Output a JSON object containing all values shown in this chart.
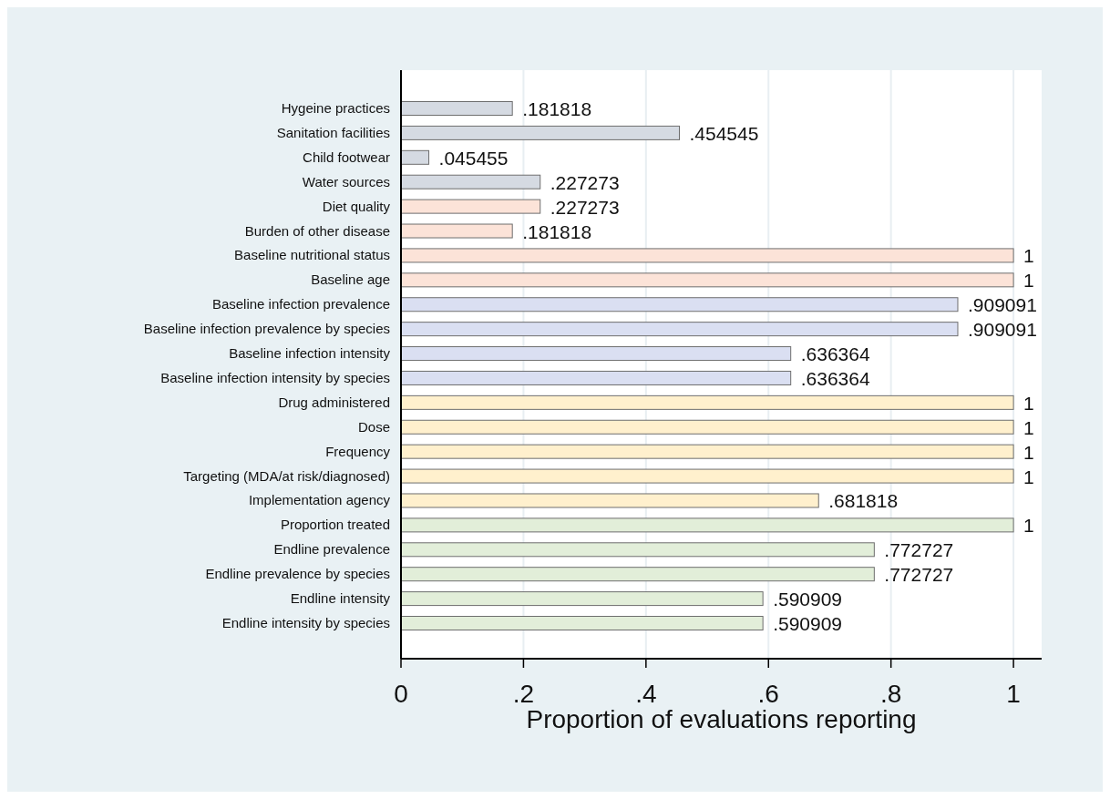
{
  "chart_data": {
    "type": "bar",
    "orientation": "horizontal",
    "xlabel": "Proportion of evaluations reporting",
    "categories": [
      "Hygeine practices",
      "Sanitation facilities",
      "Child footwear",
      "Water sources",
      "Diet quality",
      "Burden of other disease",
      "Baseline nutritional status",
      "Baseline age",
      "Baseline infection prevalence",
      "Baseline infection prevalence by species",
      "Baseline infection intensity",
      "Baseline infection intensity by species",
      "Drug administered",
      "Dose",
      "Frequency",
      "Targeting (MDA/at risk/diagnosed)",
      "Implementation agency",
      "Proportion treated",
      "Endline prevalence",
      "Endline prevalence by species",
      "Endline intensity",
      "Endline intensity by species"
    ],
    "values": [
      0.181818,
      0.454545,
      0.045455,
      0.227273,
      0.227273,
      0.181818,
      1,
      1,
      0.909091,
      0.909091,
      0.636364,
      0.636364,
      1,
      1,
      1,
      1,
      0.681818,
      1,
      0.772727,
      0.772727,
      0.590909,
      0.590909
    ],
    "value_labels": [
      ".181818",
      ".454545",
      ".045455",
      ".227273",
      ".227273",
      ".181818",
      "1",
      "1",
      ".909091",
      ".909091",
      ".636364",
      ".636364",
      "1",
      "1",
      "1",
      "1",
      ".681818",
      "1",
      ".772727",
      ".772727",
      ".590909",
      ".590909"
    ],
    "colors": [
      "#d5dae2",
      "#d5dae2",
      "#d5dae2",
      "#d5dae2",
      "#fce3d8",
      "#fce3d8",
      "#fce3d8",
      "#fce3d8",
      "#dadff2",
      "#dadff2",
      "#dadff2",
      "#dadff2",
      "#fff0cd",
      "#fff0cd",
      "#fff0cd",
      "#fff0cd",
      "#fff0cd",
      "#e2eed9",
      "#e2eed9",
      "#e2eed9",
      "#e2eed9",
      "#e2eed9"
    ],
    "xlim": [
      0,
      1.046
    ],
    "xticks": [
      0,
      {
        "value": 0.2,
        "label": ".2"
      },
      {
        "value": 0.4,
        "label": ".4"
      },
      {
        "value": 0.6,
        "label": ".6"
      },
      {
        "value": 0.8,
        "label": ".8"
      },
      1
    ],
    "grid": "x"
  }
}
